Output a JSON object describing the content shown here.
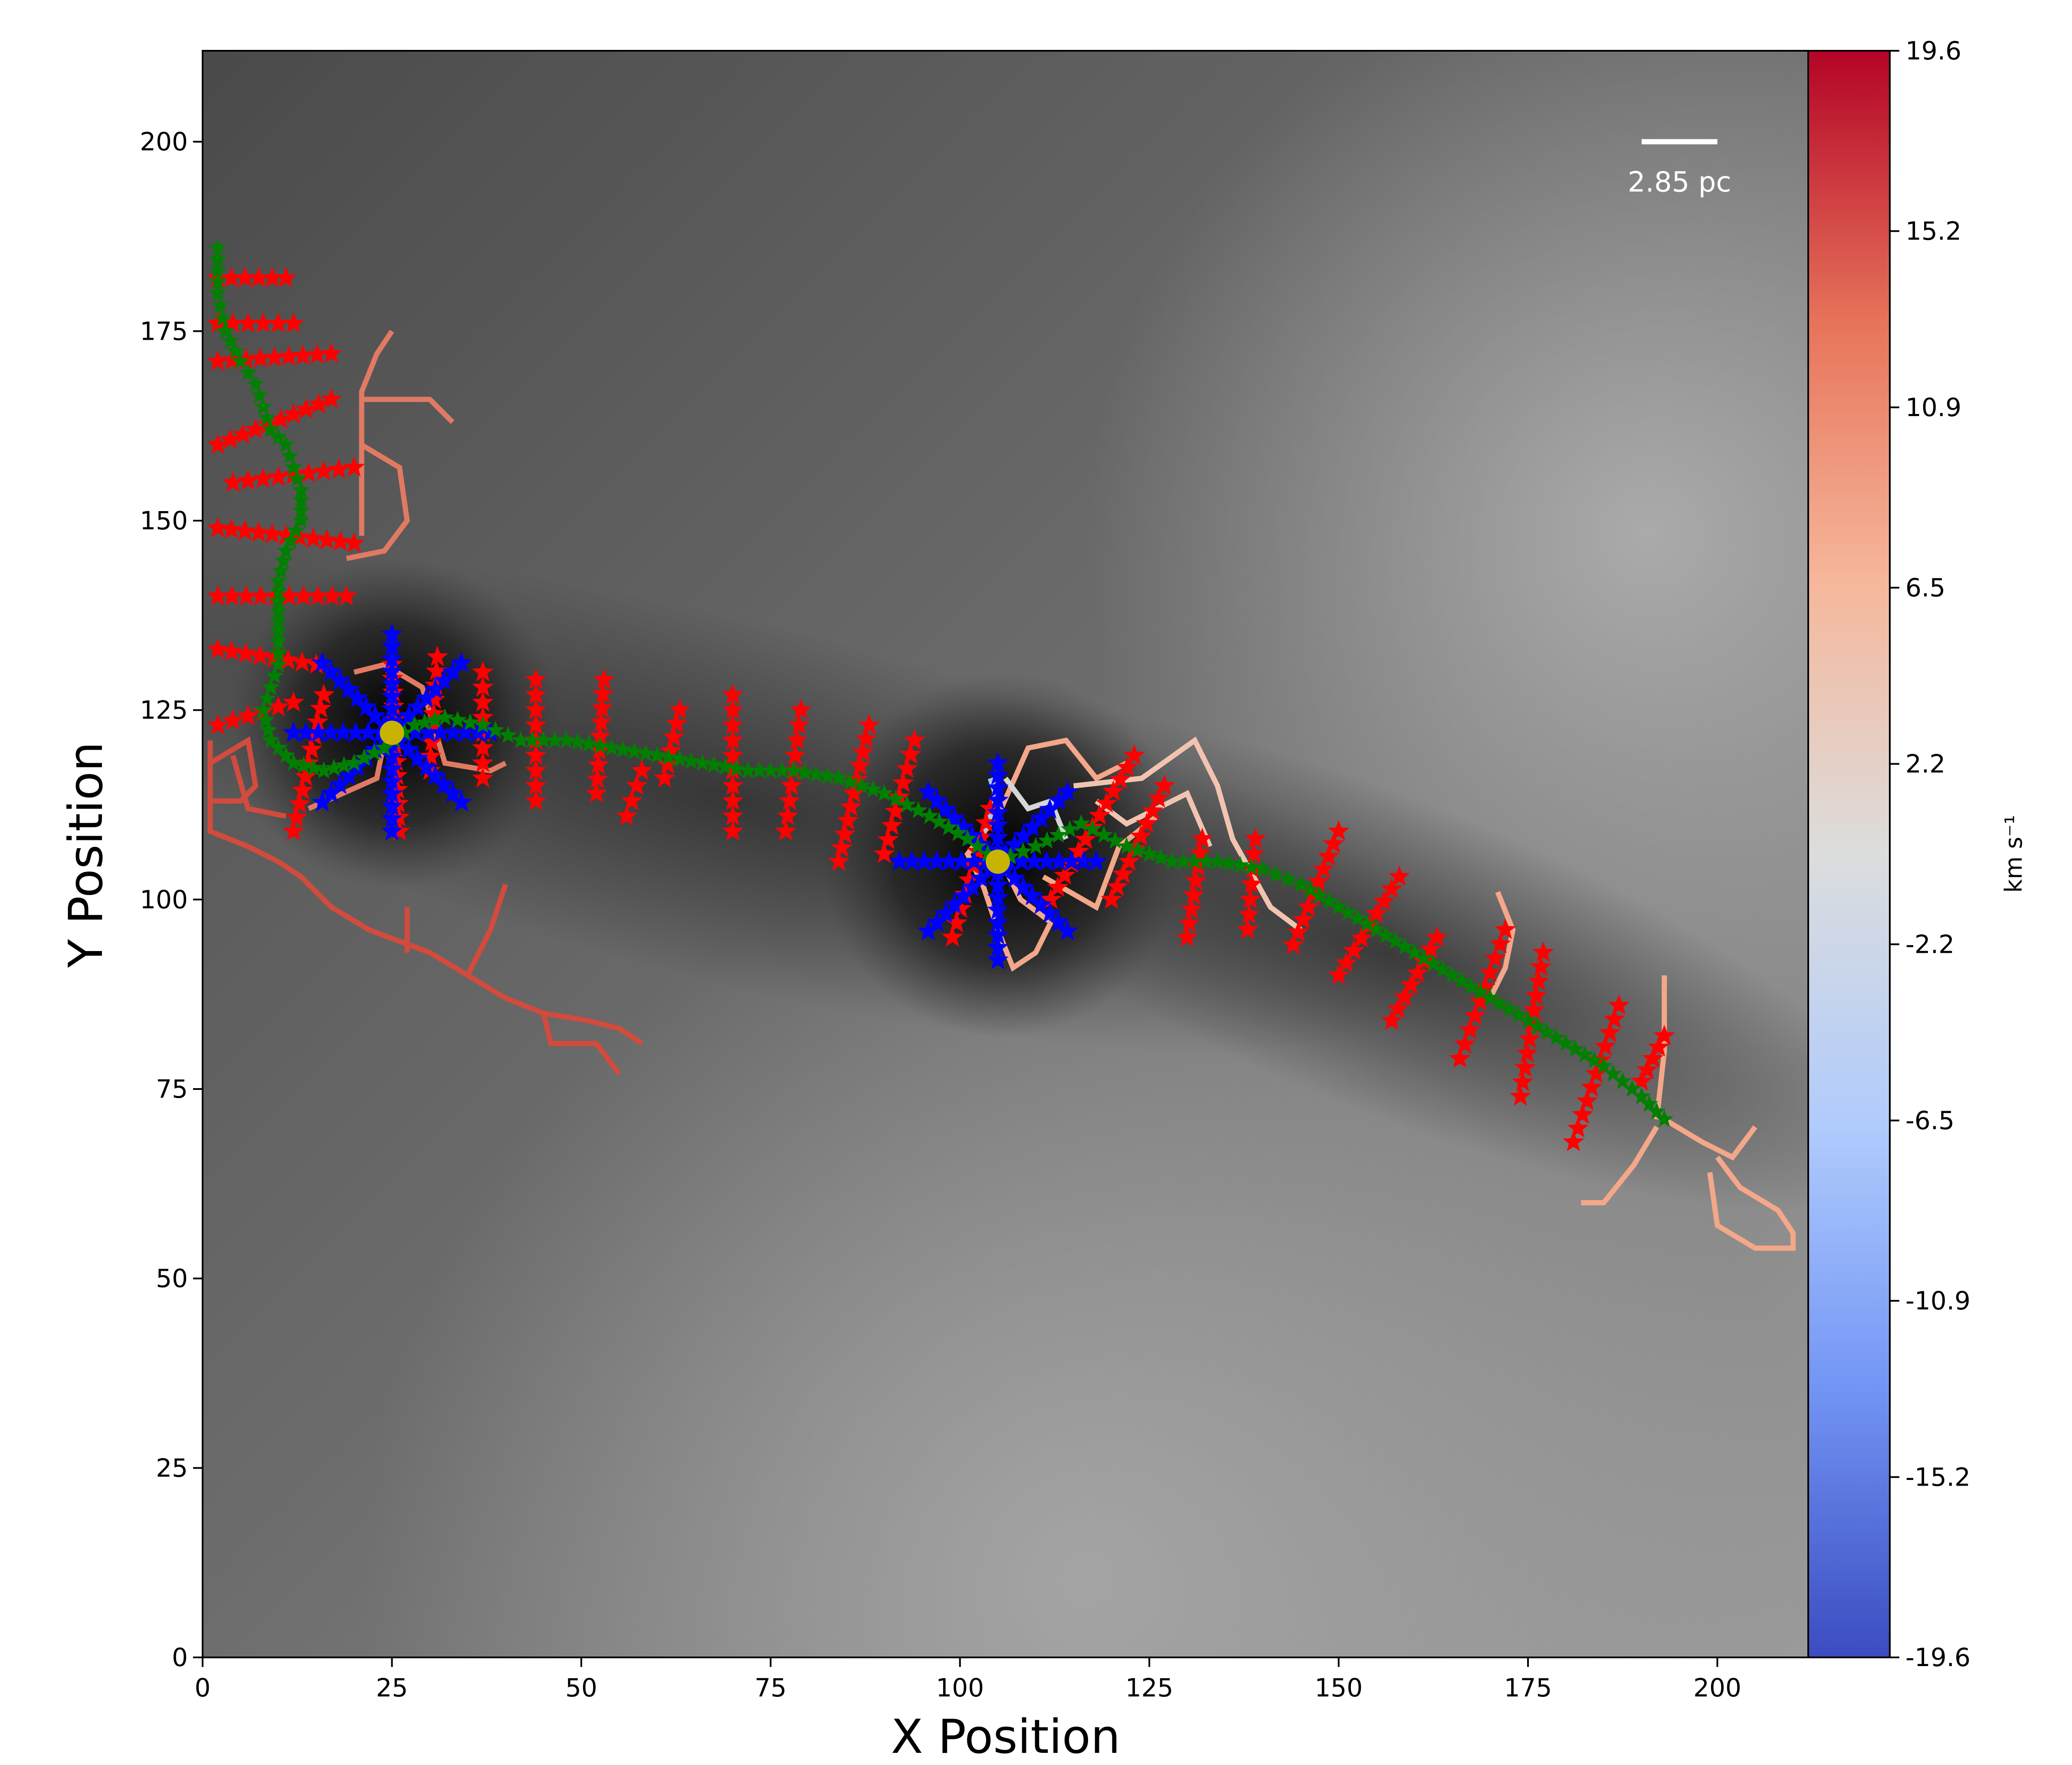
{
  "chart_data": {
    "type": "heatmap",
    "title": "",
    "xlabel": "X Position",
    "ylabel": "Y Position",
    "xlim": [
      0,
      212
    ],
    "ylim": [
      0,
      212
    ],
    "xticks": [
      0,
      25,
      50,
      75,
      100,
      125,
      150,
      175,
      200
    ],
    "yticks": [
      0,
      25,
      50,
      75,
      100,
      125,
      150,
      175,
      200
    ],
    "grid": false,
    "background_colormap": "grayscale",
    "colorbar": {
      "label": "km s⁻¹",
      "colormap": "coolwarm",
      "range": [
        -19.6,
        19.6
      ],
      "ticks": [
        "19.6",
        "15.2",
        "10.9",
        "6.5",
        "2.2",
        "-2.2",
        "-6.5",
        "-10.9",
        "-15.2",
        "-19.6"
      ],
      "tick_values": [
        19.6,
        15.2,
        10.9,
        6.5,
        2.2,
        -2.2,
        -6.5,
        -10.9,
        -15.2,
        -19.6
      ],
      "colors": [
        "#3b4cc0",
        "#7396f5",
        "#b0cbfc",
        "#dcdddd",
        "#f6b79b",
        "#e7745b",
        "#b40426"
      ]
    },
    "scale_bar": {
      "label": "2.85 pc",
      "x": [
        190,
        200
      ],
      "y": 200,
      "color": "#ffffff"
    },
    "cores": [
      {
        "x": 25,
        "y": 122,
        "color": "#c8b400"
      },
      {
        "x": 105,
        "y": 105,
        "color": "#c8b400"
      }
    ],
    "spine_color": "#008000",
    "spine": [
      [
        2,
        186
      ],
      [
        2,
        180
      ],
      [
        3,
        175
      ],
      [
        5,
        171
      ],
      [
        7,
        168
      ],
      [
        8,
        165
      ],
      [
        9,
        162
      ],
      [
        11,
        160
      ],
      [
        12,
        157
      ],
      [
        13,
        154
      ],
      [
        13,
        150
      ],
      [
        11,
        146
      ],
      [
        10,
        142
      ],
      [
        10,
        138
      ],
      [
        10,
        134
      ],
      [
        10,
        131
      ],
      [
        9,
        128
      ],
      [
        8,
        125
      ],
      [
        9,
        121
      ],
      [
        12,
        118
      ],
      [
        16,
        117
      ],
      [
        20,
        118
      ],
      [
        24,
        120
      ],
      [
        28,
        123
      ],
      [
        32,
        124
      ],
      [
        37,
        123
      ],
      [
        42,
        121
      ],
      [
        48,
        121
      ],
      [
        54,
        120
      ],
      [
        60,
        119
      ],
      [
        66,
        118
      ],
      [
        72,
        117
      ],
      [
        78,
        117
      ],
      [
        84,
        116
      ],
      [
        90,
        114
      ],
      [
        96,
        111
      ],
      [
        101,
        108
      ],
      [
        105,
        105
      ],
      [
        110,
        107
      ],
      [
        116,
        110
      ],
      [
        122,
        107
      ],
      [
        128,
        105
      ],
      [
        134,
        105
      ],
      [
        140,
        104
      ],
      [
        145,
        102
      ],
      [
        150,
        99
      ],
      [
        155,
        96
      ],
      [
        160,
        93
      ],
      [
        165,
        90
      ],
      [
        170,
        87
      ],
      [
        175,
        84
      ],
      [
        180,
        81
      ],
      [
        185,
        78
      ],
      [
        190,
        74
      ],
      [
        193,
        71
      ]
    ],
    "perpendicular_color": "#ff0000",
    "perpendiculars": [
      [
        [
          2,
          182
        ],
        [
          11,
          182
        ]
      ],
      [
        [
          2,
          176
        ],
        [
          12,
          176
        ]
      ],
      [
        [
          2,
          171
        ],
        [
          17,
          172
        ]
      ],
      [
        [
          2,
          160
        ],
        [
          17,
          166
        ]
      ],
      [
        [
          4,
          155
        ],
        [
          20,
          157
        ]
      ],
      [
        [
          2,
          149
        ],
        [
          20,
          147
        ]
      ],
      [
        [
          2,
          140
        ],
        [
          19,
          140
        ]
      ],
      [
        [
          2,
          133
        ],
        [
          15,
          131
        ]
      ],
      [
        [
          2,
          123
        ],
        [
          12,
          126
        ]
      ],
      [
        [
          12,
          109
        ],
        [
          16,
          127
        ]
      ],
      [
        [
          26,
          109
        ],
        [
          25,
          131
        ]
      ],
      [
        [
          30,
          117
        ],
        [
          31,
          132
        ]
      ],
      [
        [
          37,
          116
        ],
        [
          37,
          130
        ]
      ],
      [
        [
          44,
          113
        ],
        [
          44,
          129
        ]
      ],
      [
        [
          52,
          114
        ],
        [
          53,
          129
        ]
      ],
      [
        [
          56,
          111
        ],
        [
          58,
          117
        ]
      ],
      [
        [
          61,
          116
        ],
        [
          63,
          125
        ]
      ],
      [
        [
          70,
          109
        ],
        [
          70,
          127
        ]
      ],
      [
        [
          77,
          109
        ],
        [
          79,
          125
        ]
      ],
      [
        [
          84,
          105
        ],
        [
          88,
          123
        ]
      ],
      [
        [
          90,
          106
        ],
        [
          94,
          121
        ]
      ],
      [
        [
          99,
          95
        ],
        [
          104,
          112
        ]
      ],
      [
        [
          112,
          100
        ],
        [
          123,
          119
        ]
      ],
      [
        [
          120,
          100
        ],
        [
          127,
          115
        ]
      ],
      [
        [
          130,
          95
        ],
        [
          132,
          108
        ]
      ],
      [
        [
          138,
          96
        ],
        [
          139,
          108
        ]
      ],
      [
        [
          144,
          94
        ],
        [
          150,
          109
        ]
      ],
      [
        [
          150,
          90
        ],
        [
          158,
          103
        ]
      ],
      [
        [
          157,
          84
        ],
        [
          163,
          95
        ]
      ],
      [
        [
          166,
          79
        ],
        [
          172,
          96
        ]
      ],
      [
        [
          174,
          74
        ],
        [
          177,
          93
        ]
      ],
      [
        [
          181,
          68
        ],
        [
          187,
          86
        ]
      ],
      [
        [
          190,
          76
        ],
        [
          193,
          82
        ]
      ]
    ],
    "radial_color": "#0000ff",
    "radials": [
      {
        "center": [
          25,
          122
        ],
        "length": 13,
        "rays": 8
      },
      {
        "center": [
          105,
          105
        ],
        "length": 13,
        "rays": 8
      }
    ],
    "skeleton_branches": [
      {
        "color": "#e07a63",
        "points": [
          [
            21,
            148
          ],
          [
            21,
            167
          ],
          [
            23,
            172
          ],
          [
            25,
            175
          ]
        ]
      },
      {
        "color": "#e07a63",
        "points": [
          [
            21,
            166
          ],
          [
            30,
            166
          ],
          [
            33,
            163
          ]
        ]
      },
      {
        "color": "#e07a63",
        "points": [
          [
            21,
            160
          ],
          [
            26,
            157
          ],
          [
            27,
            150
          ],
          [
            24,
            146
          ],
          [
            19,
            145
          ]
        ]
      },
      {
        "color": "#e07a63",
        "points": [
          [
            14,
            112
          ],
          [
            23,
            116
          ],
          [
            24,
            121
          ]
        ]
      },
      {
        "color": "#e07a63",
        "points": [
          [
            20,
            130
          ],
          [
            24,
            131
          ],
          [
            29,
            128
          ],
          [
            32,
            118
          ],
          [
            38,
            117
          ],
          [
            40,
            118
          ]
        ]
      },
      {
        "color": "#d24b3c",
        "points": [
          [
            1,
            121
          ],
          [
            1,
            109
          ],
          [
            6,
            107
          ],
          [
            10,
            105
          ],
          [
            13,
            103
          ],
          [
            17,
            99
          ],
          [
            22,
            96
          ],
          [
            30,
            93
          ],
          [
            35,
            90
          ],
          [
            40,
            87
          ],
          [
            45,
            85
          ],
          [
            51,
            84
          ],
          [
            55,
            83
          ],
          [
            58,
            81
          ]
        ]
      },
      {
        "color": "#d24b3c",
        "points": [
          [
            1,
            118
          ],
          [
            6,
            121
          ],
          [
            7,
            115
          ],
          [
            5,
            113
          ],
          [
            1,
            113
          ]
        ]
      },
      {
        "color": "#d24b3c",
        "points": [
          [
            4,
            119
          ],
          [
            6,
            112
          ],
          [
            11,
            111
          ]
        ]
      },
      {
        "color": "#d24b3c",
        "points": [
          [
            35,
            90
          ],
          [
            38,
            96
          ],
          [
            40,
            102
          ]
        ]
      },
      {
        "color": "#d24b3c",
        "points": [
          [
            27,
            93
          ],
          [
            27,
            99
          ]
        ]
      },
      {
        "color": "#d24b3c",
        "points": [
          [
            45,
            85
          ],
          [
            46,
            81
          ],
          [
            52,
            81
          ],
          [
            55,
            77
          ]
        ]
      },
      {
        "color": "#f4a789",
        "points": [
          [
            105,
            117
          ],
          [
            104,
            110
          ],
          [
            101,
            106
          ],
          [
            103,
            102
          ],
          [
            105,
            96
          ],
          [
            107,
            91
          ],
          [
            110,
            93
          ],
          [
            112,
            97
          ],
          [
            108,
            100
          ],
          [
            106,
            104
          ]
        ]
      },
      {
        "color": "#f4a789",
        "points": [
          [
            105,
            111
          ],
          [
            109,
            120
          ],
          [
            114,
            121
          ],
          [
            118,
            116
          ],
          [
            122,
            118
          ]
        ]
      },
      {
        "color": "#f4a789",
        "points": [
          [
            111,
            103
          ],
          [
            118,
            99
          ],
          [
            121,
            107
          ],
          [
            126,
            111
          ]
        ]
      },
      {
        "color": "#f2c4b0",
        "points": [
          [
            115,
            115
          ],
          [
            124,
            116
          ],
          [
            131,
            121
          ],
          [
            134,
            115
          ],
          [
            136,
            108
          ],
          [
            141,
            99
          ],
          [
            145,
            96
          ]
        ]
      },
      {
        "color": "#f2c4b0",
        "points": [
          [
            118,
            113
          ],
          [
            122,
            110
          ],
          [
            130,
            114
          ],
          [
            133,
            107
          ]
        ]
      },
      {
        "color": "#d6d6d6",
        "points": [
          [
            106,
            116
          ],
          [
            109,
            112
          ],
          [
            112,
            113
          ],
          [
            114,
            108
          ]
        ]
      },
      {
        "color": "#a8c4f0",
        "points": [
          [
            103,
            109
          ],
          [
            105,
            113
          ],
          [
            104,
            116
          ]
        ]
      },
      {
        "color": "#f4a789",
        "points": [
          [
            170,
            87
          ],
          [
            172,
            91
          ],
          [
            173,
            96
          ],
          [
            171,
            101
          ]
        ]
      },
      {
        "color": "#f4a789",
        "points": [
          [
            192,
            71
          ],
          [
            193,
            80
          ],
          [
            193,
            87
          ],
          [
            193,
            90
          ]
        ]
      },
      {
        "color": "#f4a789",
        "points": [
          [
            193,
            71
          ],
          [
            198,
            68
          ],
          [
            202,
            66
          ],
          [
            205,
            70
          ]
        ]
      },
      {
        "color": "#f4a789",
        "points": [
          [
            192,
            70
          ],
          [
            189,
            65
          ],
          [
            185,
            60
          ],
          [
            182,
            60
          ]
        ]
      },
      {
        "color": "#f4a789",
        "points": [
          [
            200,
            66
          ],
          [
            203,
            62
          ],
          [
            208,
            59
          ],
          [
            210,
            56
          ],
          [
            210,
            54
          ],
          [
            205,
            54
          ],
          [
            200,
            57
          ],
          [
            199,
            64
          ]
        ]
      }
    ]
  }
}
